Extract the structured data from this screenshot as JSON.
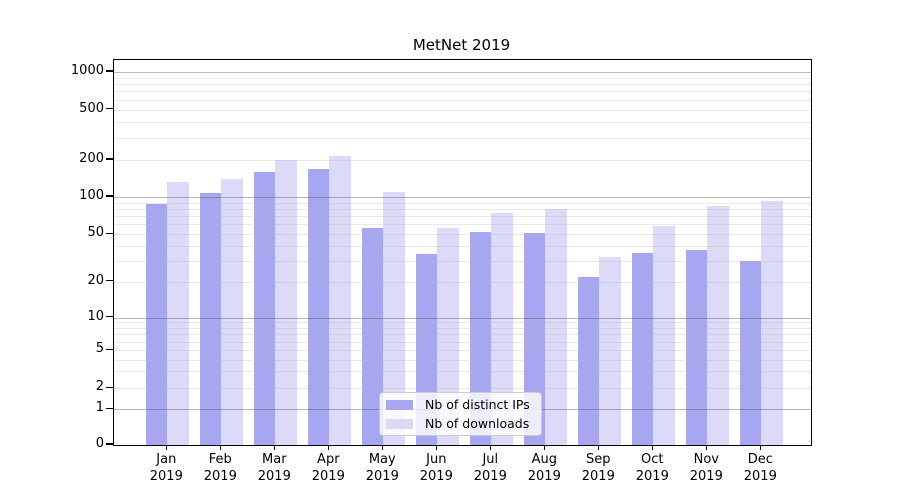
{
  "chart_data": {
    "type": "bar",
    "title": "MetNet 2019",
    "categories": [
      "Jan 2019",
      "Feb 2019",
      "Mar 2019",
      "Apr 2019",
      "May 2019",
      "Jun 2019",
      "Jul 2019",
      "Aug 2019",
      "Sep 2019",
      "Oct 2019",
      "Nov 2019",
      "Dec 2019"
    ],
    "series": [
      {
        "name": "Nb of distinct IPs",
        "color": "#a6a6f1",
        "values": [
          88,
          108,
          160,
          170,
          56,
          34,
          52,
          51,
          22,
          35,
          37,
          30
        ]
      },
      {
        "name": "Nb of downloads",
        "color": "#dbdbf9",
        "values": [
          132,
          140,
          200,
          215,
          110,
          56,
          74,
          80,
          32,
          58,
          85,
          92
        ]
      }
    ],
    "xlabel": "",
    "ylabel": "",
    "y_axis": {
      "scale": "symlog",
      "tick_values": [
        0,
        1,
        2,
        5,
        10,
        20,
        50,
        100,
        200,
        500,
        1000
      ],
      "tick_labels": [
        "0",
        "1",
        "2",
        "5",
        "10",
        "20",
        "50",
        "100",
        "200",
        "500",
        "1000"
      ],
      "range": [
        0,
        1150
      ],
      "major_grid_values": [
        1,
        10,
        100,
        1000
      ]
    },
    "grid": "both",
    "legend": {
      "position": "lower-center-inside",
      "entries": [
        "Nb of distinct IPs",
        "Nb of downloads"
      ]
    }
  }
}
